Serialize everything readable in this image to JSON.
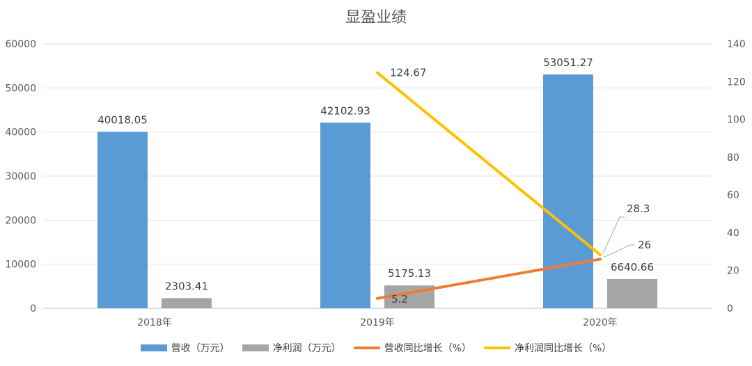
{
  "chart_data": {
    "type": "bar",
    "title": "显盈业绩",
    "categories": [
      "2018年",
      "2019年",
      "2020年"
    ],
    "series": [
      {
        "name": "营收（万元）",
        "kind": "bar",
        "axis": "left",
        "color": "#5B9BD5",
        "values": [
          40018.05,
          42102.93,
          53051.27
        ],
        "labels": [
          "40018.05",
          "42102.93",
          "53051.27"
        ]
      },
      {
        "name": "净利润（万元）",
        "kind": "bar",
        "axis": "left",
        "color": "#A5A5A5",
        "values": [
          2303.41,
          5175.13,
          6640.66
        ],
        "labels": [
          "2303.41",
          "5175.13",
          "6640.66"
        ]
      },
      {
        "name": "营收同比增长（%）",
        "kind": "line",
        "axis": "right",
        "color": "#ED7D31",
        "values": [
          null,
          5.2,
          26
        ],
        "labels": [
          "",
          "5.2",
          "26"
        ]
      },
      {
        "name": "净利润同比增长（%）",
        "kind": "line",
        "axis": "right",
        "color": "#FFC000",
        "values": [
          null,
          124.67,
          28.3
        ],
        "labels": [
          "",
          "124.67",
          "28.3"
        ]
      }
    ],
    "y_left": {
      "min": 0,
      "max": 60000,
      "ticks": [
        "0",
        "10000",
        "20000",
        "30000",
        "40000",
        "50000",
        "60000"
      ]
    },
    "y_right": {
      "min": 0,
      "max": 140,
      "ticks": [
        "0",
        "20",
        "40",
        "60",
        "80",
        "100",
        "120",
        "140"
      ]
    },
    "grid": true,
    "legend": "bottom"
  }
}
